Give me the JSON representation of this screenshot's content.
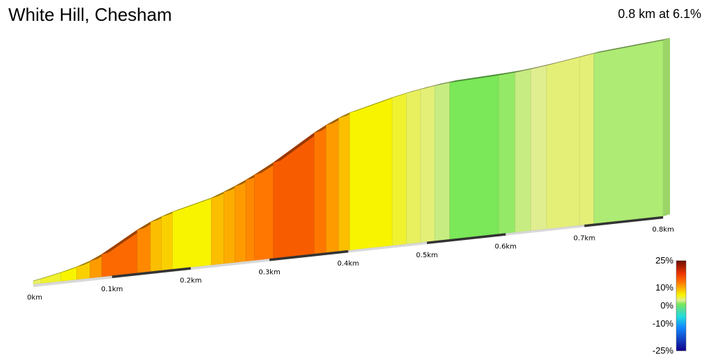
{
  "chart_data": {
    "type": "area",
    "title": "White Hill, Chesham",
    "subtitle": "0.8 km at 6.1%",
    "x_unit": "km",
    "xlim": [
      0,
      0.8
    ],
    "x_ticks": [
      {
        "value": 0.0,
        "label": "0km"
      },
      {
        "value": 0.1,
        "label": "0.1km"
      },
      {
        "value": 0.2,
        "label": "0.2km"
      },
      {
        "value": 0.3,
        "label": "0.3km"
      },
      {
        "value": 0.4,
        "label": "0.4km"
      },
      {
        "value": 0.5,
        "label": "0.5km"
      },
      {
        "value": 0.6,
        "label": "0.6km"
      },
      {
        "value": 0.7,
        "label": "0.7km"
      },
      {
        "value": 0.8,
        "label": "0.8km"
      }
    ],
    "gradient_segments": [
      {
        "start_km": 0.0,
        "end_km": 0.01,
        "gradient_pct": 4
      },
      {
        "start_km": 0.01,
        "end_km": 0.035,
        "gradient_pct": 5
      },
      {
        "start_km": 0.035,
        "end_km": 0.055,
        "gradient_pct": 6
      },
      {
        "start_km": 0.055,
        "end_km": 0.072,
        "gradient_pct": 8
      },
      {
        "start_km": 0.072,
        "end_km": 0.087,
        "gradient_pct": 11
      },
      {
        "start_km": 0.087,
        "end_km": 0.132,
        "gradient_pct": 14
      },
      {
        "start_km": 0.132,
        "end_km": 0.149,
        "gradient_pct": 12
      },
      {
        "start_km": 0.149,
        "end_km": 0.163,
        "gradient_pct": 9
      },
      {
        "start_km": 0.163,
        "end_km": 0.177,
        "gradient_pct": 8
      },
      {
        "start_km": 0.177,
        "end_km": 0.226,
        "gradient_pct": 6
      },
      {
        "start_km": 0.226,
        "end_km": 0.242,
        "gradient_pct": 9
      },
      {
        "start_km": 0.242,
        "end_km": 0.256,
        "gradient_pct": 10
      },
      {
        "start_km": 0.256,
        "end_km": 0.27,
        "gradient_pct": 11
      },
      {
        "start_km": 0.27,
        "end_km": 0.281,
        "gradient_pct": 12
      },
      {
        "start_km": 0.281,
        "end_km": 0.305,
        "gradient_pct": 13
      },
      {
        "start_km": 0.305,
        "end_km": 0.357,
        "gradient_pct": 15
      },
      {
        "start_km": 0.357,
        "end_km": 0.372,
        "gradient_pct": 13
      },
      {
        "start_km": 0.372,
        "end_km": 0.388,
        "gradient_pct": 11
      },
      {
        "start_km": 0.388,
        "end_km": 0.402,
        "gradient_pct": 9
      },
      {
        "start_km": 0.402,
        "end_km": 0.456,
        "gradient_pct": 6
      },
      {
        "start_km": 0.456,
        "end_km": 0.474,
        "gradient_pct": 5
      },
      {
        "start_km": 0.474,
        "end_km": 0.492,
        "gradient_pct": 4
      },
      {
        "start_km": 0.492,
        "end_km": 0.51,
        "gradient_pct": 3.5
      },
      {
        "start_km": 0.51,
        "end_km": 0.529,
        "gradient_pct": 2.5
      },
      {
        "start_km": 0.529,
        "end_km": 0.591,
        "gradient_pct": 1
      },
      {
        "start_km": 0.591,
        "end_km": 0.612,
        "gradient_pct": 1.5
      },
      {
        "start_km": 0.612,
        "end_km": 0.632,
        "gradient_pct": 2.5
      },
      {
        "start_km": 0.632,
        "end_km": 0.652,
        "gradient_pct": 3
      },
      {
        "start_km": 0.652,
        "end_km": 0.694,
        "gradient_pct": 3.5
      },
      {
        "start_km": 0.694,
        "end_km": 0.712,
        "gradient_pct": 3.5
      },
      {
        "start_km": 0.712,
        "end_km": 0.8,
        "gradient_pct": 2
      }
    ],
    "legend": {
      "type": "colorbar",
      "placement": "bottom-right",
      "labels": [
        "25%",
        "10%",
        "0%",
        "-10%",
        "-25%"
      ],
      "values": [
        25,
        10,
        0,
        -10,
        -25
      ],
      "stops": [
        {
          "value": 25,
          "color": "#6b0e00"
        },
        {
          "value": 18,
          "color": "#ee3300"
        },
        {
          "value": 13,
          "color": "#ff7700"
        },
        {
          "value": 6,
          "color": "#f8f400"
        },
        {
          "value": 3,
          "color": "#e0ee90"
        },
        {
          "value": 1,
          "color": "#7ae858"
        },
        {
          "value": -2,
          "color": "#55dd99"
        },
        {
          "value": -6,
          "color": "#22dddd"
        },
        {
          "value": -12,
          "color": "#1188ff"
        },
        {
          "value": -25,
          "color": "#110088"
        }
      ]
    }
  }
}
